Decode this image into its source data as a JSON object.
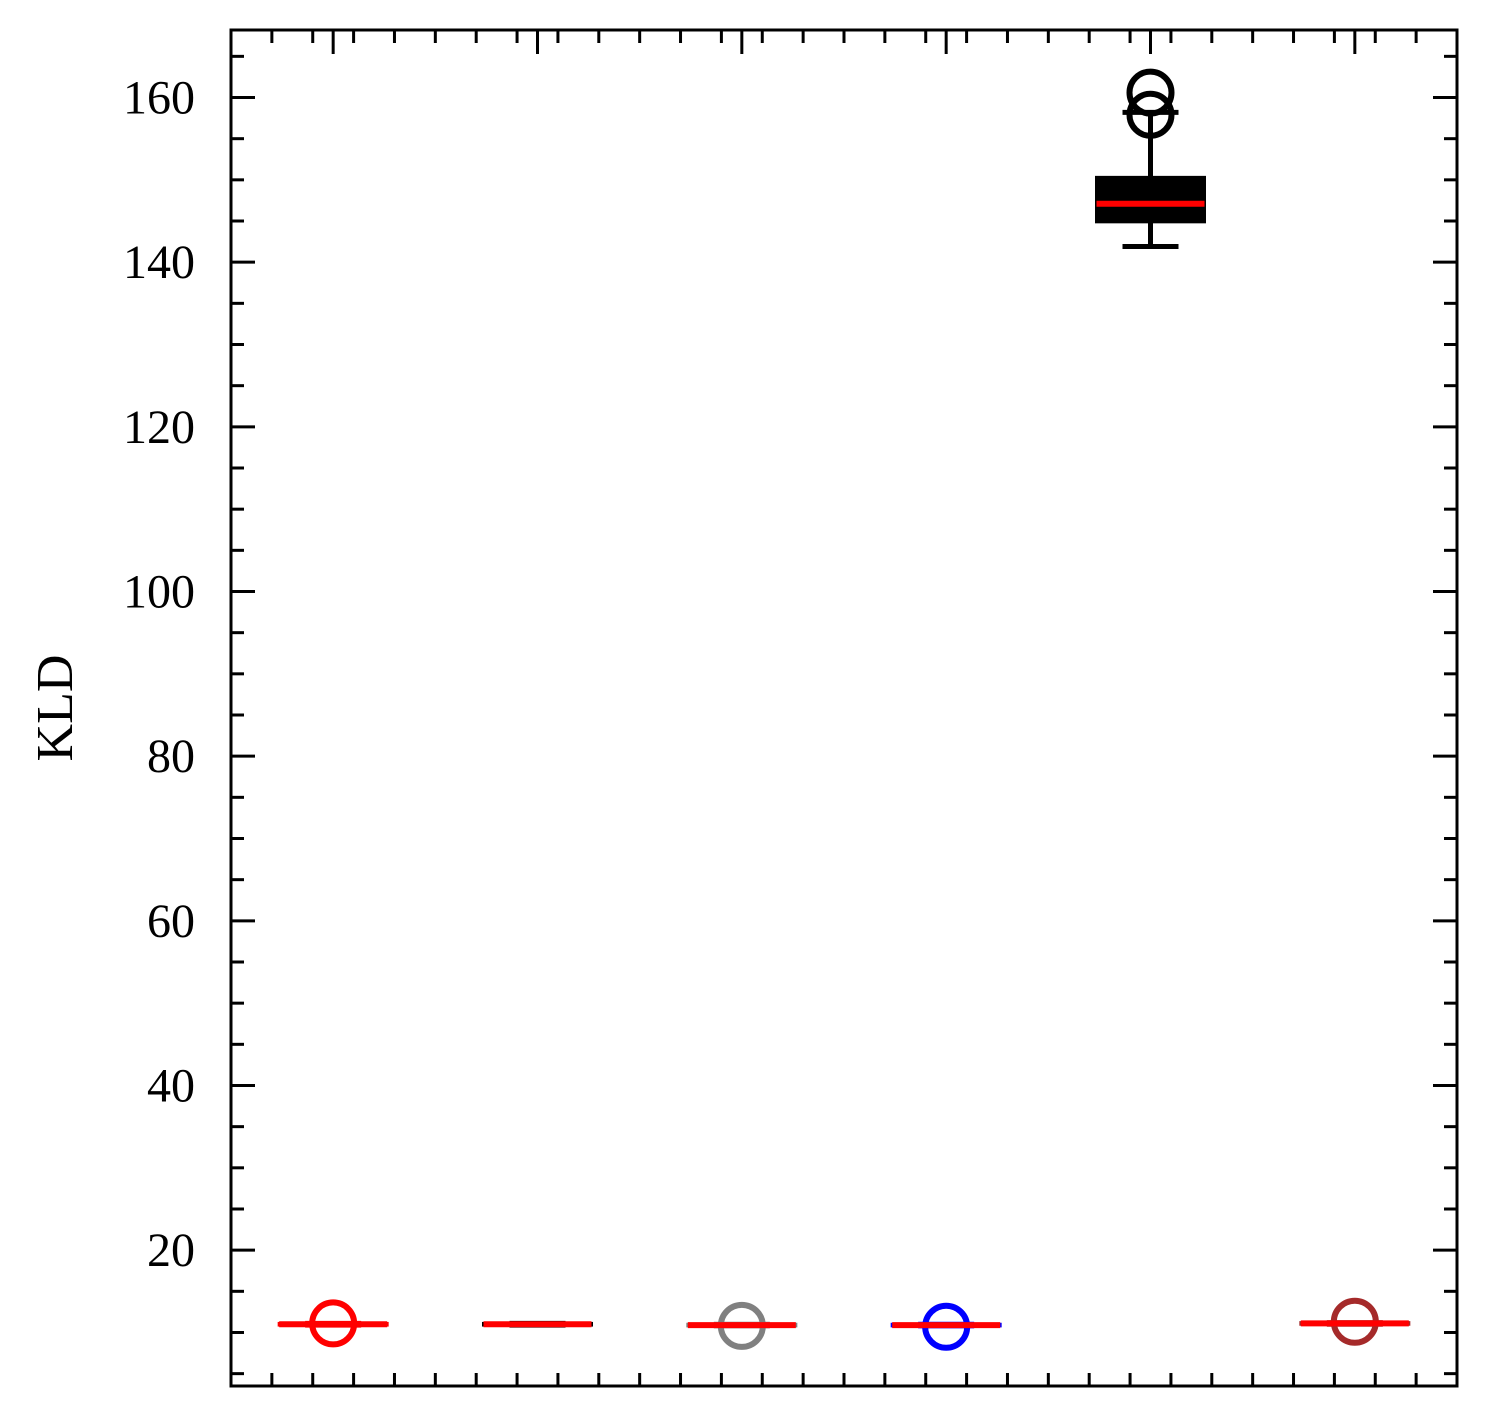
{
  "chart_data": {
    "type": "box",
    "title": "",
    "xlabel": "",
    "ylabel": "KLD",
    "ylim": [
      3.5,
      168.2
    ],
    "yticks_major": [
      20,
      40,
      60,
      80,
      100,
      120,
      140,
      160
    ],
    "yticks_minor_step": 5,
    "x_minor_ticks_count": 30,
    "show_x_tick_labels": false,
    "grid": false,
    "median_color": "#ff0000",
    "boxes": [
      {
        "position": 1,
        "color": "#ff0000",
        "q1": 10.9,
        "median": 11.0,
        "q3": 11.1,
        "whisker_low": 10.9,
        "whisker_high": 11.1,
        "outliers": [
          11.1
        ]
      },
      {
        "position": 2,
        "color": "#000000",
        "q1": 10.9,
        "median": 11.0,
        "q3": 11.1,
        "whisker_low": 10.9,
        "whisker_high": 11.1,
        "outliers": []
      },
      {
        "position": 3,
        "color": "#808080",
        "q1": 10.8,
        "median": 10.9,
        "q3": 11.0,
        "whisker_low": 10.8,
        "whisker_high": 11.0,
        "outliers": [
          10.8
        ]
      },
      {
        "position": 4,
        "color": "#0000ff",
        "q1": 10.8,
        "median": 10.9,
        "q3": 11.0,
        "whisker_low": 10.8,
        "whisker_high": 11.0,
        "outliers": [
          10.7
        ]
      },
      {
        "position": 5,
        "color": "#000000",
        "q1": 144.9,
        "median": 147.1,
        "q3": 150.3,
        "whisker_low": 141.9,
        "whisker_high": 158.2,
        "outliers": [
          160.6,
          157.9
        ]
      },
      {
        "position": 6,
        "color": "#a52a2a",
        "q1": 11.0,
        "median": 11.1,
        "q3": 11.2,
        "whisker_low": 11.0,
        "whisker_high": 11.2,
        "outliers": [
          11.3
        ]
      }
    ]
  }
}
